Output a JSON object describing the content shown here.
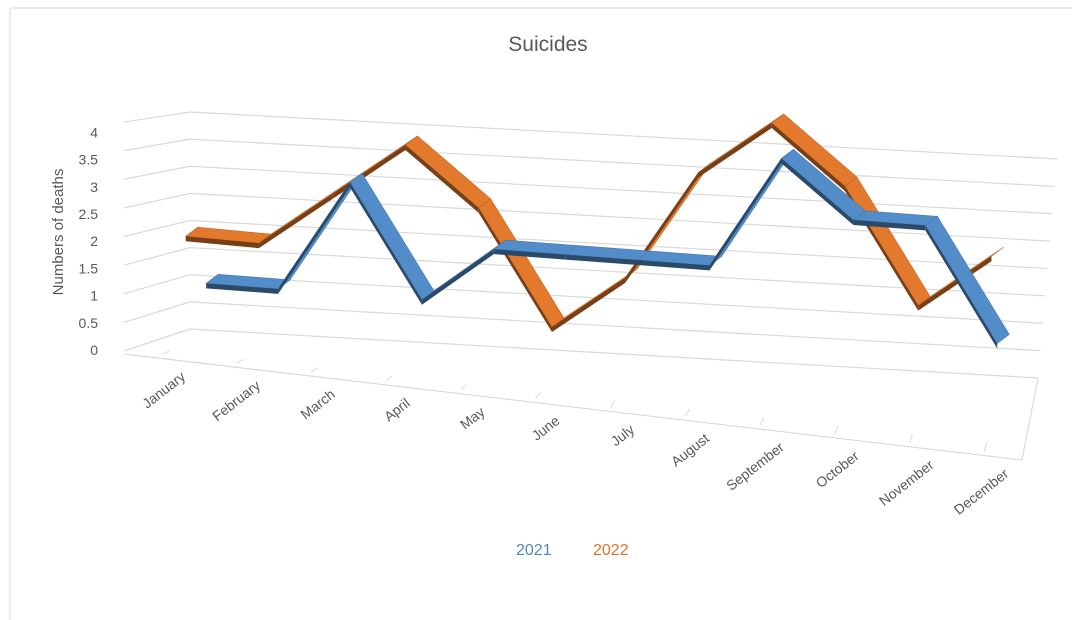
{
  "chart_data": {
    "type": "line",
    "title": "Suicides",
    "xlabel": "",
    "ylabel": "Numbers of deaths",
    "categories": [
      "January",
      "February",
      "March",
      "April",
      "May",
      "June",
      "July",
      "August",
      "September",
      "October",
      "November",
      "December"
    ],
    "y_ticks": [
      "0",
      "0.5",
      "1",
      "1.5",
      "2",
      "2.5",
      "3",
      "3.5",
      "4"
    ],
    "ylim": [
      0,
      4
    ],
    "grid": true,
    "legend_position": "bottom",
    "series": [
      {
        "name": "2021",
        "color": "#4e86c0",
        "values": [
          1,
          1,
          3,
          1,
          2,
          2,
          2,
          2,
          4,
          3,
          3,
          1
        ]
      },
      {
        "name": "2022",
        "color": "#d8732a",
        "values": [
          2,
          2,
          3,
          4,
          3,
          1,
          2,
          4,
          5,
          4,
          2,
          3
        ]
      }
    ]
  }
}
